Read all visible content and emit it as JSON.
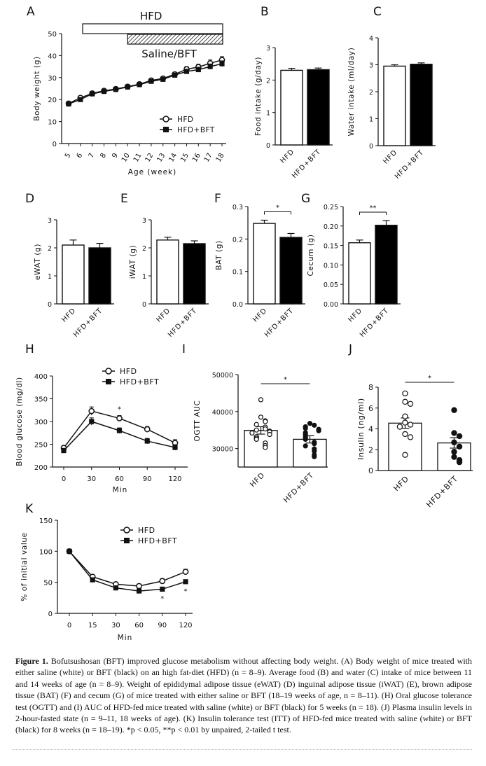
{
  "chart_data": [
    {
      "panel": "A",
      "type": "line",
      "x": [
        5,
        6,
        7,
        8,
        9,
        10,
        11,
        12,
        13,
        14,
        15,
        16,
        17,
        18
      ],
      "xlabel": "Age (week)",
      "ylabel": "Body weight (g)",
      "ylim": [
        0,
        50
      ],
      "yticks": [
        0,
        10,
        20,
        30,
        40,
        50
      ],
      "series": [
        {
          "name": "HFD",
          "marker": "open-circle",
          "values": [
            18.2,
            20.8,
            22.8,
            24.0,
            24.8,
            25.9,
            27.0,
            28.7,
            29.6,
            31.5,
            33.8,
            34.8,
            36.5,
            38.0
          ],
          "err": [
            0.4,
            0.5,
            0.5,
            0.5,
            0.6,
            0.6,
            0.7,
            0.8,
            0.8,
            0.9,
            1.2,
            1.3,
            1.5,
            1.5
          ]
        },
        {
          "name": "HFD+BFT",
          "marker": "filled-square",
          "values": [
            18.0,
            20.0,
            22.6,
            23.7,
            24.6,
            25.7,
            26.8,
            28.3,
            29.2,
            31.1,
            32.8,
            33.6,
            35.0,
            36.3
          ],
          "err": [
            0.4,
            0.5,
            0.5,
            0.5,
            0.6,
            0.6,
            0.7,
            0.8,
            0.8,
            0.9,
            1.0,
            1.1,
            1.2,
            1.3
          ]
        }
      ],
      "bar_hfd_label": "HFD",
      "bar_hfd_range": [
        6,
        18
      ],
      "bar_treat_label": "Saline/BFT",
      "bar_treat_range": [
        10,
        18
      ]
    },
    {
      "panel": "B",
      "type": "bar",
      "categories": [
        "HFD",
        "HFD+BFT"
      ],
      "values": [
        2.3,
        2.32
      ],
      "err": [
        0.06,
        0.05
      ],
      "ylabel": "Food intake (g/day)",
      "ylim": [
        0,
        3
      ],
      "yticks": [
        0,
        1,
        2,
        3
      ]
    },
    {
      "panel": "C",
      "type": "bar",
      "categories": [
        "HFD",
        "HFD+BFT"
      ],
      "values": [
        2.95,
        3.02
      ],
      "err": [
        0.05,
        0.05
      ],
      "ylabel": "Water intake (ml/day)",
      "ylim": [
        0,
        4
      ],
      "yticks": [
        0,
        1,
        2,
        3,
        4
      ]
    },
    {
      "panel": "D",
      "type": "bar",
      "categories": [
        "HFD",
        "HFD+BFT"
      ],
      "values": [
        2.1,
        2.0
      ],
      "err": [
        0.18,
        0.16
      ],
      "ylabel": "eWAT (g)",
      "ylim": [
        0,
        3
      ],
      "yticks": [
        0,
        1,
        2,
        3
      ]
    },
    {
      "panel": "E",
      "type": "bar",
      "categories": [
        "HFD",
        "HFD+BFT"
      ],
      "values": [
        2.28,
        2.15
      ],
      "err": [
        0.1,
        0.1
      ],
      "ylabel": "iWAT (g)",
      "ylim": [
        0,
        3
      ],
      "yticks": [
        0,
        1,
        2,
        3
      ]
    },
    {
      "panel": "F",
      "type": "bar",
      "categories": [
        "HFD",
        "HFD+BFT"
      ],
      "values": [
        0.248,
        0.205
      ],
      "err": [
        0.01,
        0.012
      ],
      "ylabel": "BAT (g)",
      "ylim": [
        0,
        0.3
      ],
      "yticks": [
        0,
        0.1,
        0.2,
        0.3
      ],
      "significance": "*"
    },
    {
      "panel": "G",
      "type": "bar",
      "categories": [
        "HFD",
        "HFD+BFT"
      ],
      "values": [
        0.157,
        0.202
      ],
      "err": [
        0.007,
        0.012
      ],
      "ylabel": "Cecum (g)",
      "ylim": [
        0,
        0.25
      ],
      "yticks": [
        0.0,
        0.05,
        0.1,
        0.15,
        0.2,
        0.25
      ],
      "significance": "**"
    },
    {
      "panel": "H",
      "type": "line",
      "x": [
        0,
        30,
        60,
        90,
        120
      ],
      "xlabel": "Min",
      "ylabel": "Blood glucose (mg/dl)",
      "ylim": [
        200,
        400
      ],
      "yticks": [
        200,
        250,
        300,
        350,
        400
      ],
      "series": [
        {
          "name": "HFD",
          "marker": "open-circle",
          "values": [
            242,
            323,
            307,
            283,
            253
          ],
          "err": [
            5,
            9,
            6,
            6,
            7
          ]
        },
        {
          "name": "HFD+BFT",
          "marker": "filled-square",
          "values": [
            236,
            300,
            280,
            257,
            243
          ],
          "err": [
            5,
            8,
            6,
            6,
            6
          ]
        }
      ],
      "annotations": [
        {
          "x": 60,
          "text": "*"
        }
      ]
    },
    {
      "panel": "I",
      "type": "scatter-bar",
      "categories": [
        "HFD",
        "HFD+BFT"
      ],
      "values": [
        34900,
        32500
      ],
      "err": [
        1000,
        1000
      ],
      "ylabel": "OGTT AUC",
      "ylim": [
        25000,
        50000
      ],
      "yticks": [
        30000,
        40000,
        50000
      ],
      "significance": "*",
      "points": [
        [
          43200,
          38500,
          37500,
          37300,
          36500,
          35800,
          35300,
          35000,
          34700,
          34500,
          34200,
          33800,
          33200,
          32800,
          32500,
          31500,
          30800,
          30300
        ],
        [
          36800,
          36300,
          35900,
          35500,
          35200,
          34800,
          34300,
          33900,
          33300,
          32900,
          32500,
          31700,
          31300,
          30700,
          29900,
          29300,
          28300,
          27800
        ]
      ]
    },
    {
      "panel": "J",
      "type": "scatter-bar",
      "categories": [
        "HFD",
        "HFD+BFT"
      ],
      "values": [
        4.55,
        2.65
      ],
      "err": [
        0.5,
        0.5
      ],
      "ylabel": "Insulin (ng/ml)",
      "ylim": [
        0,
        8
      ],
      "yticks": [
        0,
        2,
        4,
        6,
        8
      ],
      "significance": "*",
      "points": [
        [
          7.4,
          6.6,
          6.4,
          5.2,
          4.6,
          4.4,
          4.2,
          3.5,
          3.2,
          1.5
        ],
        [
          5.8,
          3.6,
          3.3,
          2.7,
          2.3,
          1.8,
          1.3,
          1.0,
          0.8
        ]
      ]
    },
    {
      "panel": "K",
      "type": "line",
      "x": [
        0,
        15,
        30,
        60,
        90,
        120
      ],
      "xlabel": "Min",
      "ylabel": "% of initial value",
      "ylim": [
        0,
        150
      ],
      "yticks": [
        0,
        50,
        100,
        150
      ],
      "series": [
        {
          "name": "HFD",
          "marker": "open-circle",
          "values": [
            100,
            59,
            47,
            44,
            52,
            67
          ],
          "err": [
            1,
            3,
            3,
            3,
            4,
            4
          ]
        },
        {
          "name": "HFD+BFT",
          "marker": "filled-square",
          "values": [
            100,
            54,
            41,
            36,
            39,
            51
          ],
          "err": [
            1,
            3,
            3,
            3,
            3,
            3
          ]
        }
      ],
      "annotations": [
        {
          "x": 90,
          "text": "*"
        },
        {
          "x": 120,
          "text": "*"
        }
      ]
    }
  ],
  "caption": {
    "label": "Figure 1.",
    "text": "Bofutsushosan (BFT) improved glucose metabolism without affecting body weight. (A) Body weight of mice treated with either saline (white) or BFT (black) on an high fat-diet (HFD) (n = 8–9). Average food (B) and water (C) intake of mice between 11 and 14 weeks of age (n = 8–9). Weight of epididymal adipose tissue (eWAT) (D) inguinal adipose tissue (iWAT) (E), brown adipose tissue (BAT) (F) and cecum (G) of mice treated with either saline or BFT (18–19 weeks of age, n = 8–11). (H) Oral glucose tolerance test (OGTT) and (I) AUC of HFD-fed mice treated with saline (white) or BFT (black) for 5 weeks (n = 18). (J) Plasma insulin levels in 2-hour-fasted state (n = 9–11, 18 weeks of age). (K) Insulin tolerance test (ITT) of HFD-fed mice treated with saline (white) or BFT (black) for 8 weeks (n = 18–19). *p < 0.05, **p < 0.01 by unpaired, 2-tailed t test."
  }
}
